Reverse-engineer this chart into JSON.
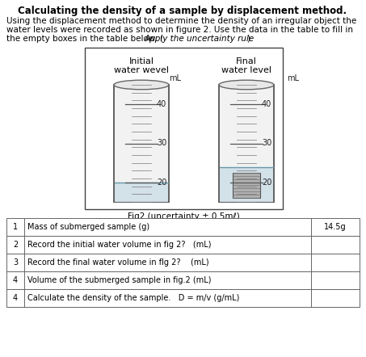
{
  "title": "Calculating the density of a sample by displacement method.",
  "body_line1": "Using the displacement method to determine the density of an irregular object the",
  "body_line2": "water levels were recorded as shown in figure 2. Use the data in the table to fill in",
  "body_line3": "the empty boxes in the table below. (​Apply the uncertainty rule​)",
  "fig_label": "Fig2 (uncertainty ± 0.5mℓ)",
  "cylinder1_label_line1": "Initial",
  "cylinder1_label_line2": "water wevel",
  "cylinder2_label_line1": "Final",
  "cylinder2_label_line2": "water level",
  "ml_label": "mL",
  "tick_values": [
    20,
    30,
    40
  ],
  "tick_min": 15,
  "tick_max": 45,
  "water_level_initial": 20,
  "water_level_final": 24,
  "table_rows": [
    {
      "num": "1",
      "description": "Mass of submerged sample (g)",
      "value": "14.5g"
    },
    {
      "num": "2",
      "description": "Record the initial water volume in fig 2?   (mL)",
      "value": ""
    },
    {
      "num": "3",
      "description": "Record the final water volume in flg 2?    (mL)",
      "value": ""
    },
    {
      "num": "4",
      "description": "Volume of the submerged sample in fig.2 (mL)",
      "value": ""
    },
    {
      "num": "4",
      "description": "Calculate the density of the sample.   D = m/v (g/mL)",
      "value": ""
    }
  ],
  "background_color": "#ffffff",
  "water_color": "#d0e0e8",
  "cylinder_bg": "#f0f0f0",
  "object_color": "#a0a0a0",
  "border_color": "#555555",
  "fig_box_color": "#444444",
  "table_border_color": "#666666",
  "title_fontsize": 8.5,
  "body_fontsize": 7.5,
  "label_fontsize": 8.0,
  "tick_label_fontsize": 7.0,
  "fig_label_fontsize": 7.5,
  "table_fontsize": 7.0
}
